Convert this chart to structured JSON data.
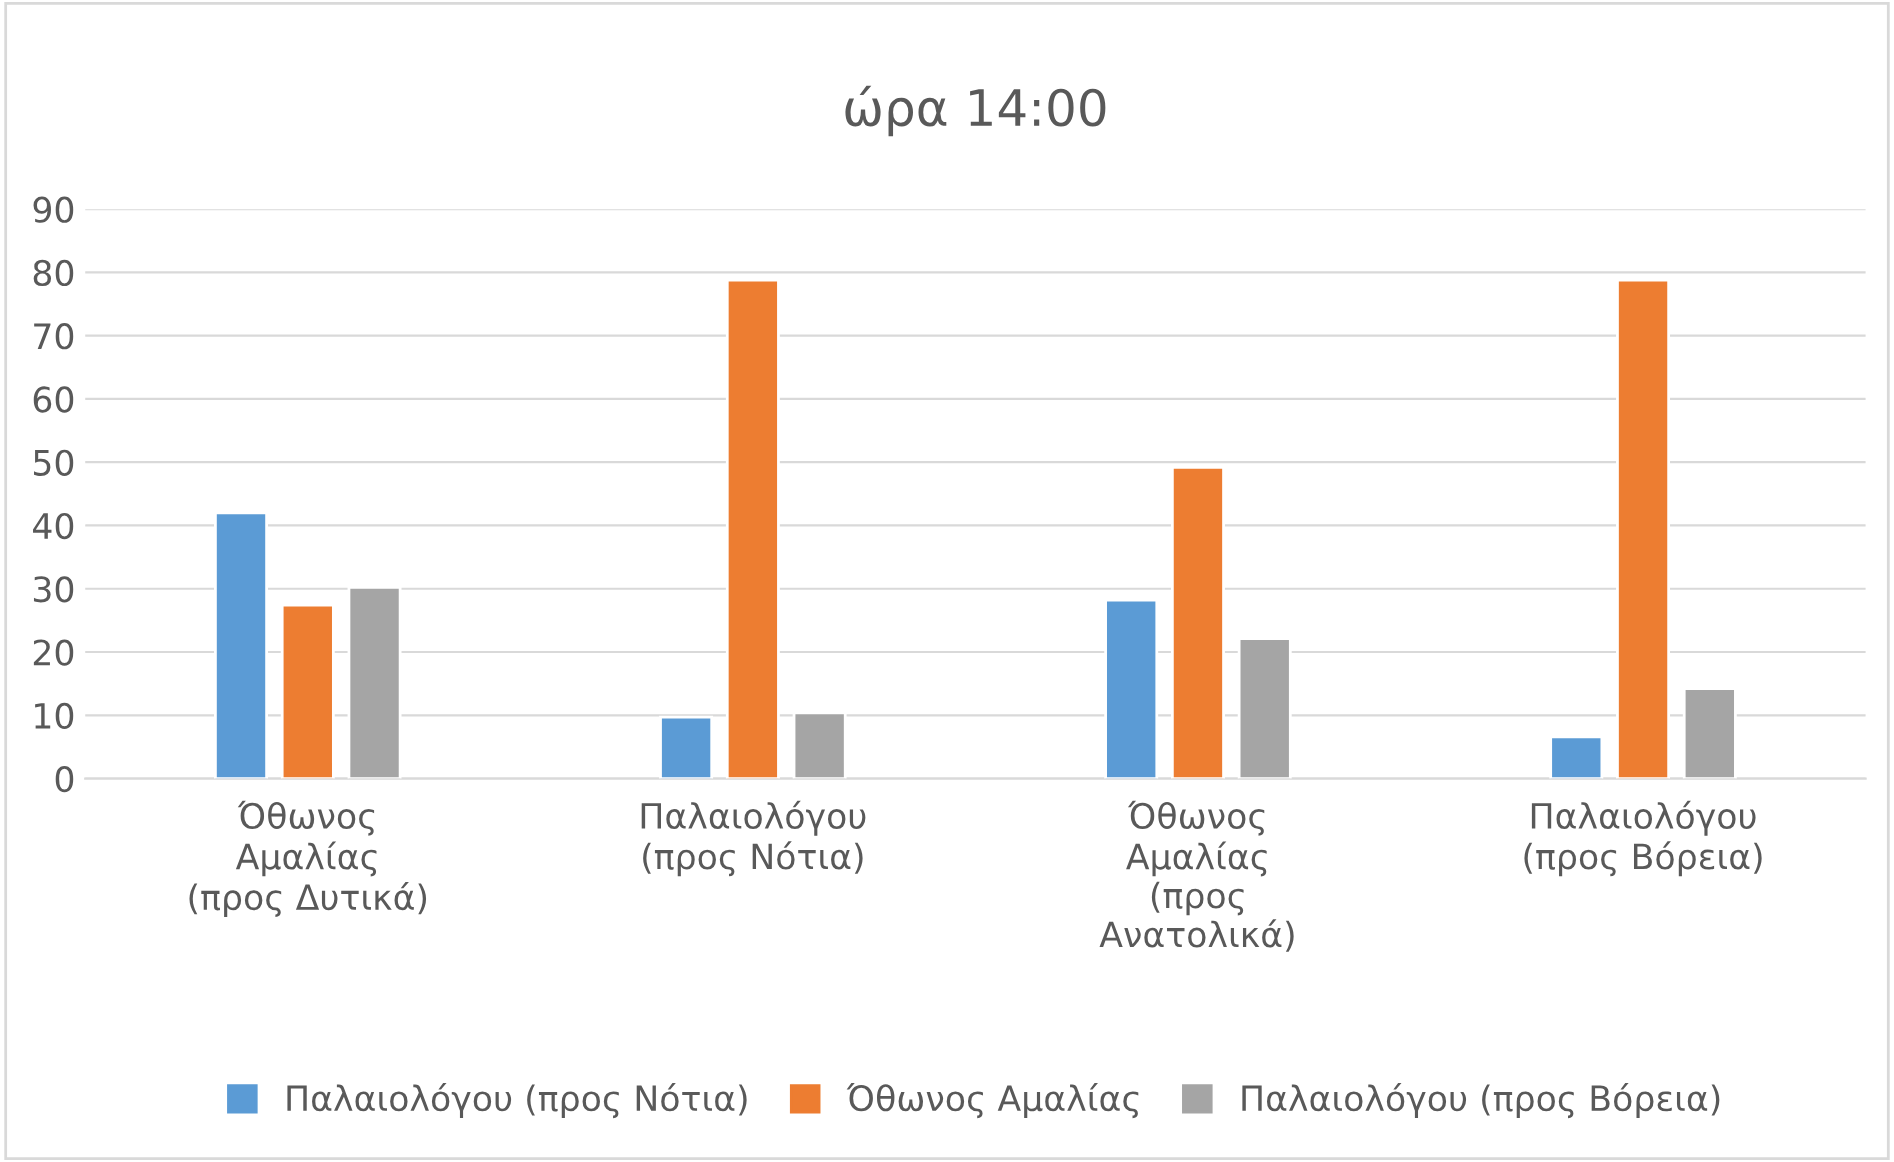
{
  "chart_data": {
    "type": "bar",
    "title": "ώρα 14:00",
    "categories": [
      "Όθωνος\nΑμαλίας\n(προς Δυτικά)",
      "Παλαιολόγου\n(προς Νότια)",
      "Όθωνος\nΑμαλίας\n(προς\nΑνατολικά)",
      "Παλαιολόγου\n(προς Βόρεια)"
    ],
    "series": [
      {
        "name": "Παλαιολόγου (προς Νότια)",
        "color": "#5b9bd5",
        "values": [
          42,
          9.7,
          28.2,
          6.6
        ]
      },
      {
        "name": "Όθωνος Αμαλίας",
        "color": "#ed7d31",
        "values": [
          27.4,
          78.8,
          49.2,
          78.8
        ]
      },
      {
        "name": "Παλαιολόγου (προς Βόρεια)",
        "color": "#a5a5a5",
        "values": [
          30.2,
          10.4,
          22.1,
          14.2
        ]
      }
    ],
    "ylim": [
      0,
      90
    ],
    "yticks": [
      0,
      10,
      20,
      30,
      40,
      50,
      60,
      70,
      80,
      90
    ],
    "grid": "y",
    "legend": "bottom"
  }
}
